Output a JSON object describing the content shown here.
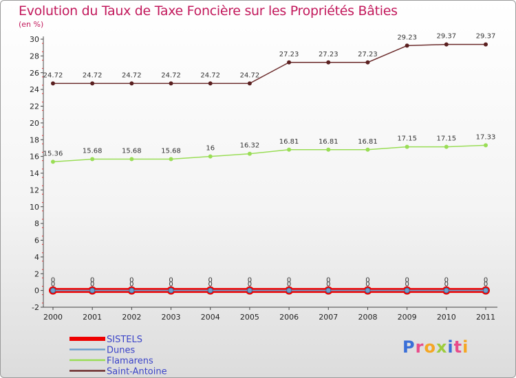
{
  "title": "Evolution du Taux de Taxe Foncière sur les Propriétés Bâties",
  "subtitle": "(en %)",
  "logo": "Proxiti",
  "colors": {
    "SISTELS": "#ee0000",
    "Dunes": "#6fa0cc",
    "Flamarens": "#99dd55",
    "Saint-Antoine": "#6b2b2b",
    "title": "#c2185b",
    "legend": "#3b44c8"
  },
  "chart_data": {
    "type": "line",
    "title": "Evolution du Taux de Taxe Foncière sur les Propriétés Bâties",
    "ylabel": "(en %)",
    "xlabel": "",
    "ylim": [
      -2,
      30
    ],
    "yticks": [
      -2,
      0,
      2,
      4,
      6,
      8,
      10,
      12,
      14,
      16,
      18,
      20,
      22,
      24,
      26,
      28,
      30
    ],
    "categories": [
      "2000",
      "2001",
      "2002",
      "2003",
      "2004",
      "2005",
      "2006",
      "2007",
      "2008",
      "2009",
      "2010",
      "2011"
    ],
    "series": [
      {
        "name": "SISTELS",
        "values": [
          0,
          0,
          0,
          0,
          0,
          0,
          0,
          0,
          0,
          0,
          0,
          0
        ],
        "labels": [
          "0",
          "0",
          "0",
          "0",
          "0",
          "0",
          "0",
          "0",
          "0",
          "0",
          "0",
          "0"
        ]
      },
      {
        "name": "Dunes",
        "values": [
          0,
          0,
          0,
          0,
          0,
          0,
          0,
          0,
          0,
          0,
          0,
          0
        ],
        "labels": [
          "0",
          "0",
          "0",
          "0",
          "0",
          "0",
          "0",
          "0",
          "0",
          "0",
          "0",
          "0"
        ]
      },
      {
        "name": "Flamarens",
        "values": [
          15.36,
          15.68,
          15.68,
          15.68,
          16,
          16.32,
          16.81,
          16.81,
          16.81,
          17.15,
          17.15,
          17.33
        ],
        "labels": [
          "15.36",
          "15.68",
          "15.68",
          "15.68",
          "16",
          "16.32",
          "16.81",
          "16.81",
          "16.81",
          "17.15",
          "17.15",
          "17.33"
        ]
      },
      {
        "name": "Saint-Antoine",
        "values": [
          24.72,
          24.72,
          24.72,
          24.72,
          24.72,
          24.72,
          27.23,
          27.23,
          27.23,
          29.23,
          29.37,
          29.37
        ],
        "labels": [
          "24.72",
          "24.72",
          "24.72",
          "24.72",
          "24.72",
          "24.72",
          "27.23",
          "27.23",
          "27.23",
          "29.23",
          "29.37",
          "29.37"
        ]
      }
    ],
    "legend": [
      "SISTELS",
      "Dunes",
      "Flamarens",
      "Saint-Antoine"
    ],
    "legend_position": "bottom-left",
    "grid": false
  }
}
